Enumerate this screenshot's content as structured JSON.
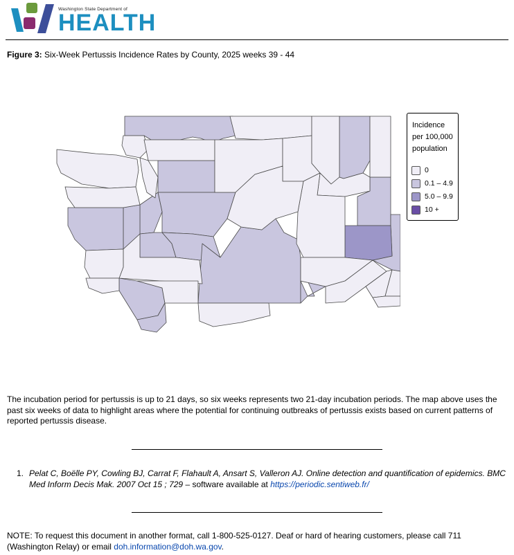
{
  "header": {
    "logo_subtitle": "Washington State Department of",
    "logo_word": "HEALTH",
    "logo_colors": [
      "#1d8fc0",
      "#6b9a3c",
      "#8a2a6e",
      "#3d4f9a"
    ]
  },
  "figure": {
    "label": "Figure 3:",
    "title": "Six-Week Pertussis Incidence Rates by County, 2025 weeks 39 - 44"
  },
  "legend": {
    "title": "Incidence per 100,000 population",
    "categories": [
      {
        "label": "0",
        "color": "#f0eef6"
      },
      {
        "label": "0.1 – 4.9",
        "color": "#c9c6df"
      },
      {
        "label": "5.0 – 9.9",
        "color": "#9c96c8"
      },
      {
        "label": "10 +",
        "color": "#6a4ea6"
      }
    ]
  },
  "map_data": {
    "region": "Washington State counties",
    "county_categories": {
      "Okanogan": "0.1 – 4.9",
      "Pend Oreille": "0.1 – 4.9",
      "Snohomish": "0.1 – 4.9",
      "King": "0.1 – 4.9",
      "Kitsap": "0.1 – 4.9",
      "Mason": "0.1 – 4.9",
      "Grays Harbor": "0.1 – 4.9",
      "Thurston": "0.1 – 4.9",
      "Pierce": "0.1 – 4.9",
      "Yakima": "0.1 – 4.9",
      "Benton": "0.1 – 4.9",
      "Spokane": "0.1 – 4.9",
      "Whitman": "0.1 – 4.9",
      "Cowlitz": "0.1 – 4.9",
      "Clark": "0.1 – 4.9",
      "Adams": "5.0 – 9.9",
      "Clallam": "0",
      "Jefferson": "0",
      "San Juan": "0",
      "Island": "0",
      "Whatcom": "0",
      "Skagit": "0",
      "Chelan": "0",
      "Douglas": "0",
      "Ferry": "0",
      "Stevens": "0",
      "Lincoln": "0",
      "Grant": "0",
      "Kittitas": "0",
      "Lewis": "0",
      "Pacific": "0",
      "Wahkiakum": "0",
      "Skamania": "0",
      "Klickitat": "0",
      "Franklin": "0",
      "Walla Walla": "0",
      "Columbia": "0",
      "Garfield": "0",
      "Asotin": "0"
    }
  },
  "body": {
    "paragraph": "The incubation period for pertussis is up to 21 days, so six weeks represents two 21-day incubation periods.  The map above uses the past six weeks of data to highlight areas where the potential for continuing outbreaks of pertussis exists based on current patterns of reported pertussis disease."
  },
  "reference": {
    "number": "1.",
    "citation": "Pelat C, Boëlle PY, Cowling BJ, Carrat F, Flahault A, Ansart S, Valleron AJ. Online detection and quantification of epidemics. BMC Med Inform Decis Mak. 2007 Oct 15 ; 729",
    "software_text": " – software available at ",
    "url": "https://periodic.sentiweb.fr/"
  },
  "note": {
    "text_before": "NOTE: To request this document in another format, call 1-800-525-0127. Deaf or hard of hearing customers, please call 711 (Washington Relay) or email ",
    "email": "doh.information@doh.wa.gov",
    "text_after": "."
  }
}
